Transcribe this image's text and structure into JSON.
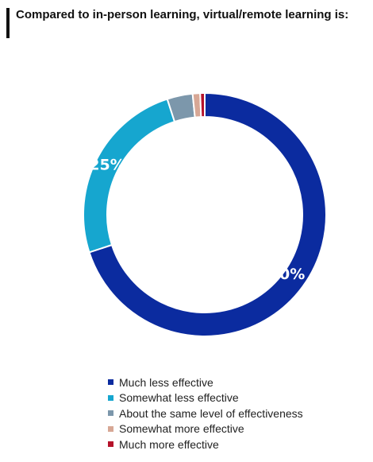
{
  "title": "Compared to in-person learning, virtual/remote learning is:",
  "chart_data": {
    "type": "pie",
    "donut": true,
    "categories": [
      "Much less effective",
      "Somewhat less effective",
      "About the same level of effectiveness",
      "Somewhat more effective",
      "Much more effective"
    ],
    "values": [
      70,
      25,
      3.4,
      1,
      0.6
    ],
    "data_labels": [
      "70%",
      "25%",
      "",
      "",
      ""
    ],
    "colors": [
      "#0b2b9f",
      "#16a6cf",
      "#7c97ab",
      "#d7a795",
      "#b5122a"
    ],
    "legend_position": "bottom"
  }
}
